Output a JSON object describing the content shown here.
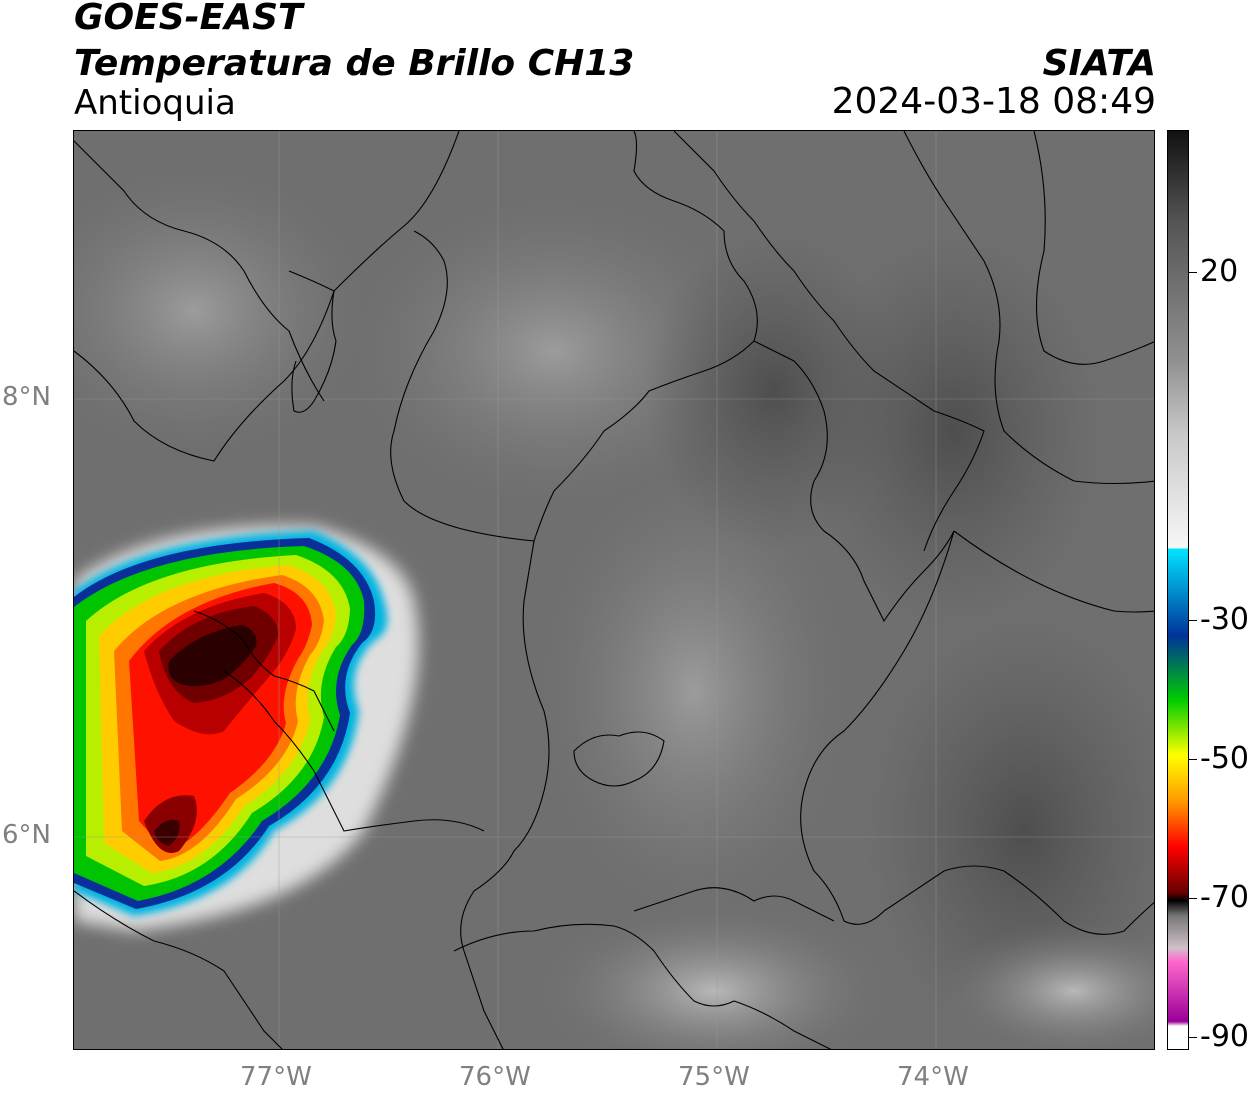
{
  "header": {
    "satellite": "GOES-EAST",
    "product": "Temperatura de Brillo CH13",
    "region": "Antioquia",
    "organization": "SIATA",
    "datetime": "2024-03-18 08:49"
  },
  "map": {
    "lat_labels": [
      "8°N",
      "6°N"
    ],
    "lon_labels": [
      "77°W",
      "76°W",
      "75°W",
      "74°W"
    ],
    "background_colors": {
      "cloud_free": "#6e6e6e",
      "warm_land": "#5a5a5a",
      "cold_cloud_edge": "#e8e8e8",
      "border_lines": "#000000"
    }
  },
  "colorbar": {
    "tick_labels": [
      "20",
      "-30",
      "-50",
      "-70",
      "-90"
    ],
    "colors": {
      "top": "#111111",
      "white": "#f5f5f5",
      "cyan": "#00e5ff",
      "blue": "#003399",
      "green": "#00cc00",
      "yellow": "#ffff00",
      "orange": "#ff9900",
      "red": "#ff0000",
      "dark_red": "#660000",
      "black": "#000000",
      "pink": "#ff66cc",
      "purple": "#990099"
    }
  }
}
